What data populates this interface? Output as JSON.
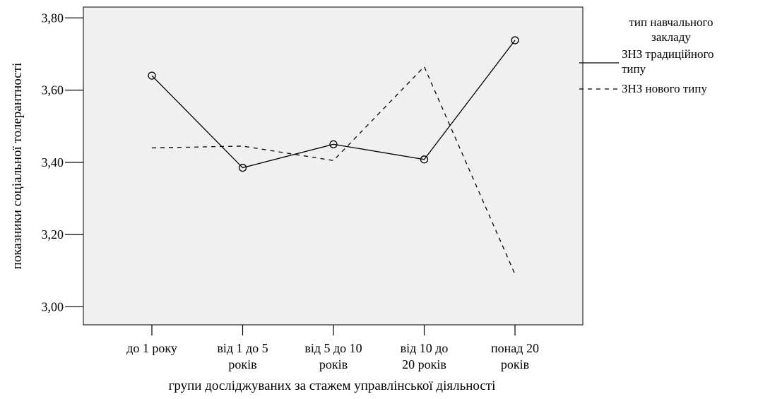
{
  "chart_data": {
    "type": "line",
    "categories": [
      [
        "до 1 року"
      ],
      [
        "від 1 до 5",
        "років"
      ],
      [
        "від 5 до 10",
        "років"
      ],
      [
        "від 10 до",
        "20 років"
      ],
      [
        "понад 20",
        "років"
      ]
    ],
    "series": [
      {
        "name": [
          "ЗНЗ традиційного",
          "типу"
        ],
        "values": [
          3.64,
          3.385,
          3.45,
          3.408,
          3.738
        ],
        "line_style": "solid",
        "markers": true,
        "color": "#000000"
      },
      {
        "name": [
          "ЗНЗ нового типу"
        ],
        "values": [
          3.44,
          3.445,
          3.405,
          3.665,
          3.09
        ],
        "line_style": "dashed",
        "markers": false,
        "color": "#000000"
      }
    ],
    "xlabel": "групи досліджуваних за стажем управлінської діяльності",
    "ylabel": "показники соціальної толерантності",
    "ylim": [
      2.95,
      3.83
    ],
    "yticks": [
      3.0,
      3.2,
      3.4,
      3.6,
      3.8
    ],
    "ytick_labels": [
      "3,00",
      "3,20",
      "3,40",
      "3,60",
      "3,80"
    ],
    "legend_title": [
      "тип навчального",
      "закладу"
    ],
    "legend_position": "right",
    "plot_background": "#f0f0f0",
    "grid": false
  }
}
